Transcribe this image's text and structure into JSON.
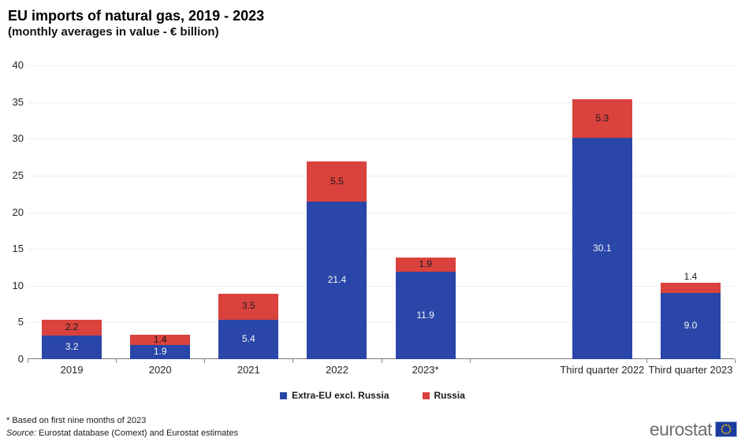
{
  "header": {
    "title": "EU imports of natural gas,  2019 - 2023",
    "subtitle": "(monthly averages in value - € billion)"
  },
  "chart_data": {
    "type": "bar",
    "stacked": true,
    "title": "EU imports of natural gas, 2019 - 2023 (monthly averages in value - € billion)",
    "categories": [
      "2019",
      "2020",
      "2021",
      "2022",
      "2023*",
      "Third quarter 2022",
      "Third quarter 2023"
    ],
    "series": [
      {
        "name": "Extra-EU excl. Russia",
        "color": "#2a46a8",
        "label_color": "#f5f5f5",
        "values": [
          3.2,
          1.9,
          5.4,
          21.4,
          11.9,
          30.1,
          9.0
        ],
        "label_above_indices": []
      },
      {
        "name": "Russia",
        "color": "#da423e",
        "label_color": "#1a1a1a",
        "values": [
          2.2,
          1.4,
          3.5,
          5.5,
          1.9,
          5.3,
          1.4
        ],
        "label_above_indices": [
          6
        ]
      }
    ],
    "ylim": [
      0,
      40
    ],
    "ytick_step": 5,
    "ytick_labels": [
      "0",
      "5",
      "10",
      "15",
      "20",
      "25",
      "30",
      "35",
      "40"
    ],
    "grid": true,
    "legend_position": "bottom",
    "grid_color": "#eeeeee",
    "axis_color": "#7a7a7a"
  },
  "footnotes": {
    "note": "* Based on first nine months of 2023",
    "source_prefix": "Source:",
    "source_text": " Eurostat database (Comext) and Eurostat estimates"
  },
  "logo": {
    "text": "eurostat",
    "flag_blue": "#1b3c9e",
    "star_yellow": "#ffcc00"
  }
}
